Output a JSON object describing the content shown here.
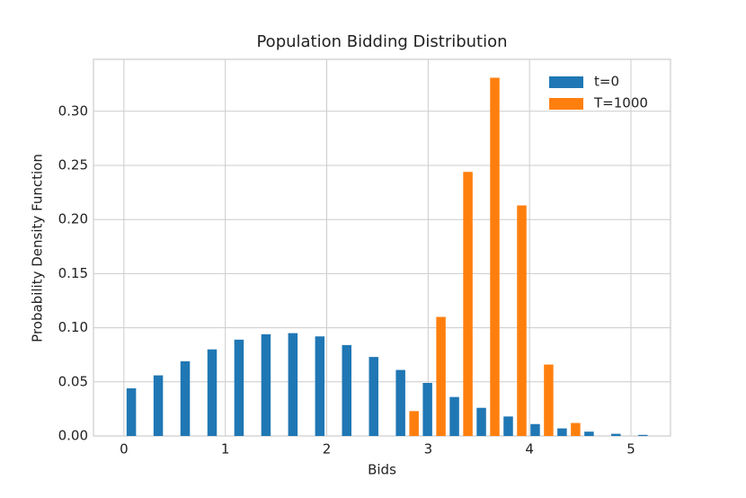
{
  "chart_data": {
    "type": "histogram",
    "title": "Population Bidding Distribution",
    "x_label": "Bids",
    "y_label": "Probability Density Function",
    "bins": [
      0,
      0.266,
      0.531,
      0.797,
      1.062,
      1.328,
      1.593,
      1.859,
      2.124,
      2.39,
      2.655,
      2.921,
      3.186,
      3.452,
      3.717,
      3.983,
      4.248,
      4.514,
      4.779,
      5.045,
      5.31
    ],
    "series": [
      {
        "name": "t=0",
        "color": "#1f77b4",
        "values": [
          0.044,
          0.056,
          0.069,
          0.08,
          0.089,
          0.094,
          0.095,
          0.092,
          0.084,
          0.073,
          0.061,
          0.049,
          0.036,
          0.026,
          0.018,
          0.011,
          0.007,
          0.004,
          0.002,
          0.001
        ]
      },
      {
        "name": "T=1000",
        "color": "#ff7f0e",
        "values": [
          0,
          0,
          0,
          0,
          0,
          0,
          0,
          0,
          0,
          0,
          0.023,
          0.11,
          0.244,
          0.331,
          0.213,
          0.066,
          0.012,
          0,
          0,
          0
        ]
      }
    ],
    "xlim": [
      -0.3,
      5.39
    ],
    "ylim": [
      0,
      0.348
    ],
    "xticks": [
      0,
      1,
      2,
      3,
      4,
      5
    ],
    "yticks": [
      {
        "value": 0,
        "label": "0.00"
      },
      {
        "value": 0.05,
        "label": "0.05"
      },
      {
        "value": 0.1,
        "label": "0.10"
      },
      {
        "value": 0.15,
        "label": "0.15"
      },
      {
        "value": 0.2,
        "label": "0.20"
      },
      {
        "value": 0.25,
        "label": "0.25"
      },
      {
        "value": 0.3,
        "label": "0.30"
      }
    ],
    "grid": true,
    "legend": "upper right"
  }
}
